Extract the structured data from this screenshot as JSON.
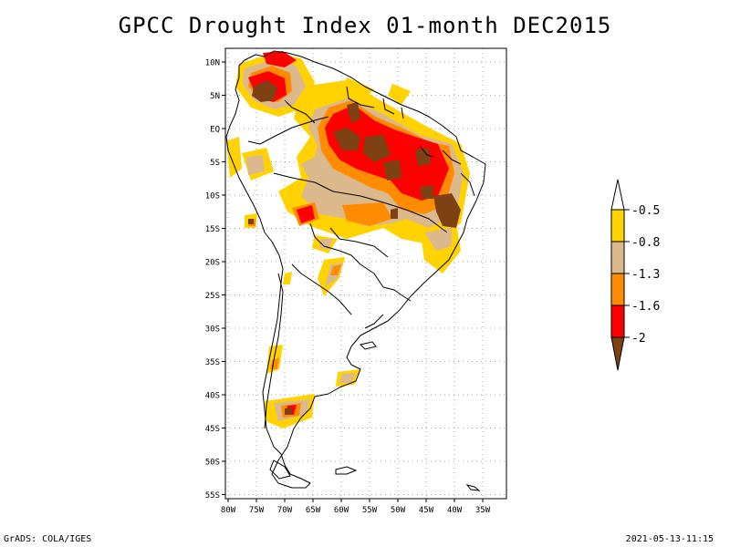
{
  "title": "GPCC Drought Index 01-month DEC2015",
  "footer": {
    "left": "GrADS: COLA/IGES",
    "right": "2021-05-13-11:15"
  },
  "map": {
    "region": "South America",
    "lat_labels": [
      "10N",
      "5N",
      "EQ",
      "5S",
      "10S",
      "15S",
      "20S",
      "25S",
      "30S",
      "35S",
      "40S",
      "45S",
      "50S",
      "55S"
    ],
    "lon_labels": [
      "80W",
      "75W",
      "70W",
      "65W",
      "60W",
      "55W",
      "50W",
      "45W",
      "40W",
      "35W"
    ]
  },
  "legend": {
    "labels": [
      "-0.5",
      "-0.8",
      "-1.3",
      "-1.6",
      "-2"
    ],
    "colors": {
      "above": "#ffffff",
      "c1": "#ffd200",
      "c2": "#dcb98c",
      "c3": "#ff8c00",
      "c4": "#ff0000",
      "c5": "#7d4114"
    }
  }
}
